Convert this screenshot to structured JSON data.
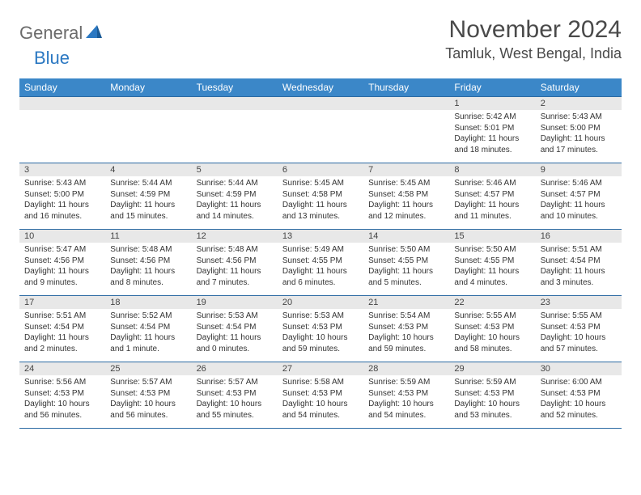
{
  "logo": {
    "general": "General",
    "blue": "Blue"
  },
  "title": "November 2024",
  "location": "Tamluk, West Bengal, India",
  "colors": {
    "header_bg": "#3b87c8",
    "header_text": "#ffffff",
    "row_border": "#2b6aa3",
    "daynum_bg": "#e8e8e8",
    "logo_gray": "#6b6b6b",
    "logo_blue": "#2b78c2",
    "title_color": "#4a4a4a"
  },
  "day_names": [
    "Sunday",
    "Monday",
    "Tuesday",
    "Wednesday",
    "Thursday",
    "Friday",
    "Saturday"
  ],
  "weeks": [
    [
      {
        "n": "",
        "sunrise": "",
        "sunset": "",
        "daylight": ""
      },
      {
        "n": "",
        "sunrise": "",
        "sunset": "",
        "daylight": ""
      },
      {
        "n": "",
        "sunrise": "",
        "sunset": "",
        "daylight": ""
      },
      {
        "n": "",
        "sunrise": "",
        "sunset": "",
        "daylight": ""
      },
      {
        "n": "",
        "sunrise": "",
        "sunset": "",
        "daylight": ""
      },
      {
        "n": "1",
        "sunrise": "Sunrise: 5:42 AM",
        "sunset": "Sunset: 5:01 PM",
        "daylight": "Daylight: 11 hours and 18 minutes."
      },
      {
        "n": "2",
        "sunrise": "Sunrise: 5:43 AM",
        "sunset": "Sunset: 5:00 PM",
        "daylight": "Daylight: 11 hours and 17 minutes."
      }
    ],
    [
      {
        "n": "3",
        "sunrise": "Sunrise: 5:43 AM",
        "sunset": "Sunset: 5:00 PM",
        "daylight": "Daylight: 11 hours and 16 minutes."
      },
      {
        "n": "4",
        "sunrise": "Sunrise: 5:44 AM",
        "sunset": "Sunset: 4:59 PM",
        "daylight": "Daylight: 11 hours and 15 minutes."
      },
      {
        "n": "5",
        "sunrise": "Sunrise: 5:44 AM",
        "sunset": "Sunset: 4:59 PM",
        "daylight": "Daylight: 11 hours and 14 minutes."
      },
      {
        "n": "6",
        "sunrise": "Sunrise: 5:45 AM",
        "sunset": "Sunset: 4:58 PM",
        "daylight": "Daylight: 11 hours and 13 minutes."
      },
      {
        "n": "7",
        "sunrise": "Sunrise: 5:45 AM",
        "sunset": "Sunset: 4:58 PM",
        "daylight": "Daylight: 11 hours and 12 minutes."
      },
      {
        "n": "8",
        "sunrise": "Sunrise: 5:46 AM",
        "sunset": "Sunset: 4:57 PM",
        "daylight": "Daylight: 11 hours and 11 minutes."
      },
      {
        "n": "9",
        "sunrise": "Sunrise: 5:46 AM",
        "sunset": "Sunset: 4:57 PM",
        "daylight": "Daylight: 11 hours and 10 minutes."
      }
    ],
    [
      {
        "n": "10",
        "sunrise": "Sunrise: 5:47 AM",
        "sunset": "Sunset: 4:56 PM",
        "daylight": "Daylight: 11 hours and 9 minutes."
      },
      {
        "n": "11",
        "sunrise": "Sunrise: 5:48 AM",
        "sunset": "Sunset: 4:56 PM",
        "daylight": "Daylight: 11 hours and 8 minutes."
      },
      {
        "n": "12",
        "sunrise": "Sunrise: 5:48 AM",
        "sunset": "Sunset: 4:56 PM",
        "daylight": "Daylight: 11 hours and 7 minutes."
      },
      {
        "n": "13",
        "sunrise": "Sunrise: 5:49 AM",
        "sunset": "Sunset: 4:55 PM",
        "daylight": "Daylight: 11 hours and 6 minutes."
      },
      {
        "n": "14",
        "sunrise": "Sunrise: 5:50 AM",
        "sunset": "Sunset: 4:55 PM",
        "daylight": "Daylight: 11 hours and 5 minutes."
      },
      {
        "n": "15",
        "sunrise": "Sunrise: 5:50 AM",
        "sunset": "Sunset: 4:55 PM",
        "daylight": "Daylight: 11 hours and 4 minutes."
      },
      {
        "n": "16",
        "sunrise": "Sunrise: 5:51 AM",
        "sunset": "Sunset: 4:54 PM",
        "daylight": "Daylight: 11 hours and 3 minutes."
      }
    ],
    [
      {
        "n": "17",
        "sunrise": "Sunrise: 5:51 AM",
        "sunset": "Sunset: 4:54 PM",
        "daylight": "Daylight: 11 hours and 2 minutes."
      },
      {
        "n": "18",
        "sunrise": "Sunrise: 5:52 AM",
        "sunset": "Sunset: 4:54 PM",
        "daylight": "Daylight: 11 hours and 1 minute."
      },
      {
        "n": "19",
        "sunrise": "Sunrise: 5:53 AM",
        "sunset": "Sunset: 4:54 PM",
        "daylight": "Daylight: 11 hours and 0 minutes."
      },
      {
        "n": "20",
        "sunrise": "Sunrise: 5:53 AM",
        "sunset": "Sunset: 4:53 PM",
        "daylight": "Daylight: 10 hours and 59 minutes."
      },
      {
        "n": "21",
        "sunrise": "Sunrise: 5:54 AM",
        "sunset": "Sunset: 4:53 PM",
        "daylight": "Daylight: 10 hours and 59 minutes."
      },
      {
        "n": "22",
        "sunrise": "Sunrise: 5:55 AM",
        "sunset": "Sunset: 4:53 PM",
        "daylight": "Daylight: 10 hours and 58 minutes."
      },
      {
        "n": "23",
        "sunrise": "Sunrise: 5:55 AM",
        "sunset": "Sunset: 4:53 PM",
        "daylight": "Daylight: 10 hours and 57 minutes."
      }
    ],
    [
      {
        "n": "24",
        "sunrise": "Sunrise: 5:56 AM",
        "sunset": "Sunset: 4:53 PM",
        "daylight": "Daylight: 10 hours and 56 minutes."
      },
      {
        "n": "25",
        "sunrise": "Sunrise: 5:57 AM",
        "sunset": "Sunset: 4:53 PM",
        "daylight": "Daylight: 10 hours and 56 minutes."
      },
      {
        "n": "26",
        "sunrise": "Sunrise: 5:57 AM",
        "sunset": "Sunset: 4:53 PM",
        "daylight": "Daylight: 10 hours and 55 minutes."
      },
      {
        "n": "27",
        "sunrise": "Sunrise: 5:58 AM",
        "sunset": "Sunset: 4:53 PM",
        "daylight": "Daylight: 10 hours and 54 minutes."
      },
      {
        "n": "28",
        "sunrise": "Sunrise: 5:59 AM",
        "sunset": "Sunset: 4:53 PM",
        "daylight": "Daylight: 10 hours and 54 minutes."
      },
      {
        "n": "29",
        "sunrise": "Sunrise: 5:59 AM",
        "sunset": "Sunset: 4:53 PM",
        "daylight": "Daylight: 10 hours and 53 minutes."
      },
      {
        "n": "30",
        "sunrise": "Sunrise: 6:00 AM",
        "sunset": "Sunset: 4:53 PM",
        "daylight": "Daylight: 10 hours and 52 minutes."
      }
    ]
  ]
}
